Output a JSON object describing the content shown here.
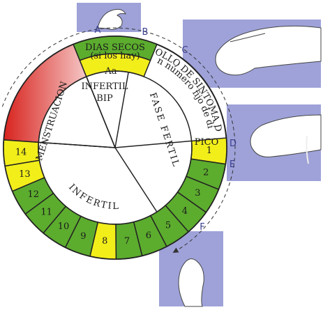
{
  "letters": [
    "A",
    "B",
    "C",
    "D",
    "E",
    "F"
  ],
  "top_band": {
    "title": "DIAS SECOS",
    "subtitle": "(si los hay)"
  },
  "aa_band": "Aa",
  "regions": {
    "menstruation": "MENSTRUACION",
    "infertil_top": "INFERTIL",
    "bip": "BIP",
    "fase_fertil": "FASE FERTIL",
    "infertil_bottom": "INFERTIL",
    "pico": "PICO"
  },
  "development": {
    "line1": "DESARROLLO DE SINTOMA DE MOCO",
    "line2": "(sin número fijo de días)"
  },
  "days": [
    {
      "label": "1",
      "color": "#f2ee1a"
    },
    {
      "label": "2",
      "color": "#5cac2e"
    },
    {
      "label": "3",
      "color": "#5cac2e"
    },
    {
      "label": "4",
      "color": "#5cac2e"
    },
    {
      "label": "5",
      "color": "#5cac2e"
    },
    {
      "label": "6",
      "color": "#5cac2e"
    },
    {
      "label": "7",
      "color": "#5cac2e"
    },
    {
      "label": "8",
      "color": "#f2ee1a"
    },
    {
      "label": "9",
      "color": "#5cac2e"
    },
    {
      "label": "10",
      "color": "#5cac2e"
    },
    {
      "label": "11",
      "color": "#5cac2e"
    },
    {
      "label": "12",
      "color": "#5cac2e"
    },
    {
      "label": "13",
      "color": "#f2ee1a"
    },
    {
      "label": "14",
      "color": "#f2ee1a"
    }
  ]
}
